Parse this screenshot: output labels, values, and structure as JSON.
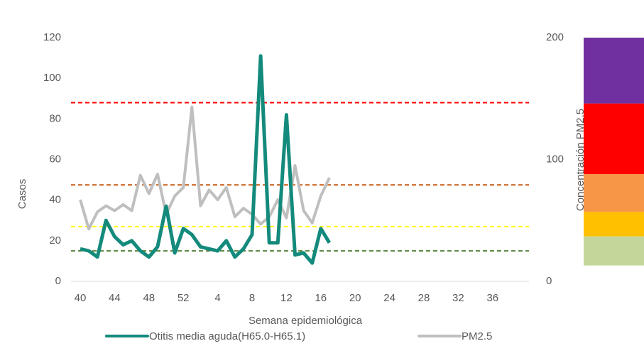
{
  "chart_data": {
    "type": "line",
    "x_label": "Semana epidemiológica",
    "y_label": "Casos",
    "y2_label": "Concentración PM2.5",
    "categories": [
      40,
      null,
      null,
      null,
      44,
      null,
      null,
      null,
      48,
      null,
      null,
      null,
      52,
      null,
      null,
      null,
      4,
      null,
      null,
      null,
      8,
      null,
      null,
      null,
      12,
      null,
      null,
      null,
      16,
      null,
      null,
      null,
      20,
      null,
      null,
      null,
      24,
      null,
      null,
      null,
      28,
      null,
      null,
      null,
      32,
      null,
      null,
      null,
      36,
      null,
      null,
      null
    ],
    "series": [
      {
        "name": "Otitis media aguda(H65.0-H65.1)",
        "color": "#138a7c",
        "values": [
          16,
          15,
          12,
          30,
          22,
          18,
          20,
          15,
          12,
          17,
          37,
          14,
          26,
          23,
          17,
          16,
          15,
          20,
          12,
          16,
          23,
          111,
          19,
          19,
          82,
          13,
          14,
          9,
          26,
          19,
          null,
          null,
          null,
          null,
          null,
          null,
          null,
          null,
          null,
          null,
          null,
          null,
          null,
          null,
          null,
          null,
          null,
          null,
          null,
          null,
          null,
          null
        ]
      },
      {
        "name": "PM2.5",
        "color": "#bfbfbf",
        "axis": "y2",
        "values": [
          67,
          43,
          57,
          62,
          58,
          63,
          58,
          87,
          72,
          88,
          55,
          70,
          77,
          143,
          62,
          75,
          67,
          77,
          53,
          60,
          55,
          47,
          53,
          67,
          52,
          95,
          58,
          48,
          70,
          85,
          null,
          null,
          null,
          null,
          null,
          null,
          null,
          null,
          null,
          null,
          null,
          null,
          null,
          null,
          null,
          null,
          null,
          null,
          null,
          null,
          null,
          null
        ]
      }
    ],
    "ylim": [
      0,
      120
    ],
    "yticks": [
      0,
      20,
      40,
      60,
      80,
      100,
      120
    ],
    "y2lim": [
      0,
      200
    ],
    "y2ticks": [
      0,
      100,
      200
    ],
    "reference_lines": [
      {
        "value": 88,
        "color": "#ff0000"
      },
      {
        "value": 47.5,
        "color": "#c55a11"
      },
      {
        "value": 27,
        "color": "#ffff00"
      },
      {
        "value": 15,
        "color": "#548235"
      }
    ],
    "bands": [
      {
        "from": 13,
        "to": 37,
        "color": "#c4d79b"
      },
      {
        "from": 37,
        "to": 57,
        "color": "#ffc000"
      },
      {
        "from": 57,
        "to": 88,
        "color": "#f79646"
      },
      {
        "from": 88,
        "to": 146,
        "color": "#ff0000"
      },
      {
        "from": 146,
        "to": 200,
        "color": "#7030a0"
      }
    ],
    "grid": false,
    "legend": "bottom"
  }
}
